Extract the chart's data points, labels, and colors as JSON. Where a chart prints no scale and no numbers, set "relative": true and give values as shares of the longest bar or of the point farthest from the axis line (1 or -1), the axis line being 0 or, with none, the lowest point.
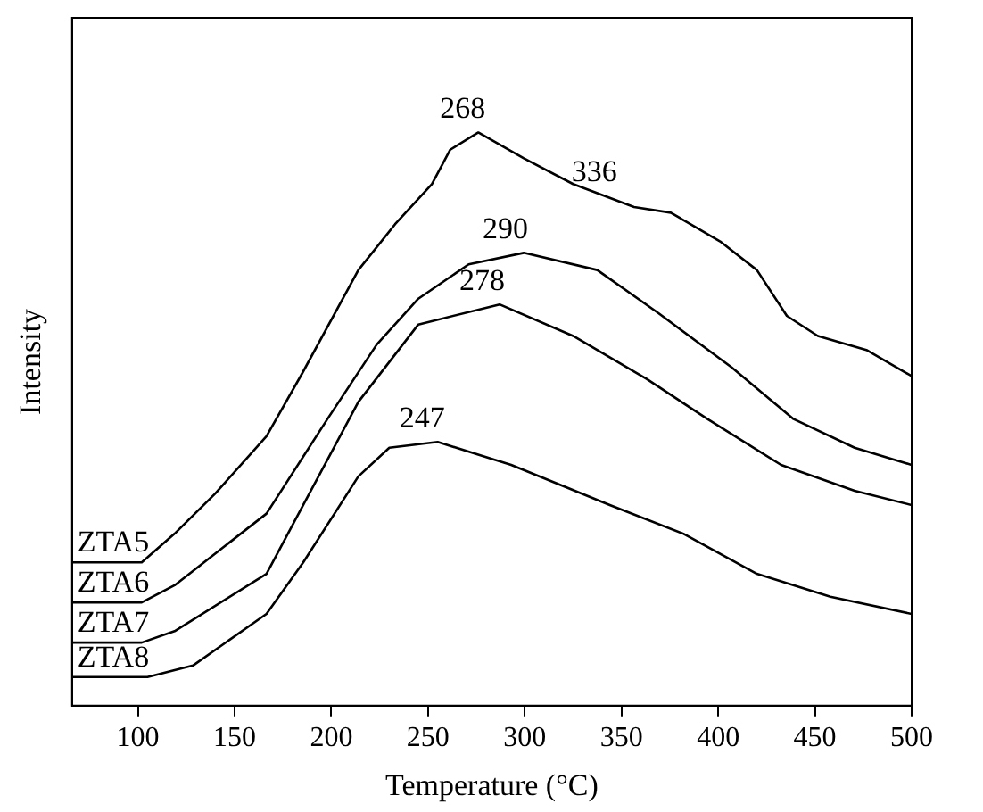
{
  "chart_data": {
    "type": "line",
    "relative": true,
    "xlabel": "Temperature (°C)",
    "ylabel": "Intensity",
    "xlim": [
      66,
      500
    ],
    "xticks": [
      100,
      150,
      200,
      250,
      300,
      350,
      400,
      450,
      500
    ],
    "legend": false,
    "grid": false,
    "marker": "none",
    "line_style": "solid",
    "series": [
      {
        "name": "ZTA5",
        "color": "#000000",
        "x": [
          66,
          102,
          119,
          140,
          166.5,
          185,
          214,
          233,
          252,
          261.5,
          276,
          299.5,
          325,
          356.5,
          375.5,
          401,
          420,
          435.5,
          451.5,
          477,
          500
        ],
        "values": [
          0.25,
          0.25,
          0.3,
          0.37,
          0.47,
          0.58,
          0.76,
          0.84,
          0.91,
          0.97,
          1.0,
          0.955,
          0.91,
          0.87,
          0.86,
          0.81,
          0.76,
          0.68,
          0.645,
          0.62,
          0.575
        ]
      },
      {
        "name": "ZTA6",
        "color": "#000000",
        "x": [
          66,
          102,
          119,
          166.5,
          198,
          223.5,
          245,
          271,
          299.5,
          337.5,
          369,
          407,
          439,
          470.5,
          500
        ],
        "values": [
          0.18,
          0.18,
          0.21,
          0.335,
          0.5,
          0.63,
          0.71,
          0.77,
          0.79,
          0.76,
          0.685,
          0.59,
          0.5,
          0.45,
          0.42
        ]
      },
      {
        "name": "ZTA7",
        "color": "#000000",
        "x": [
          66,
          102,
          119,
          166.5,
          185.5,
          214,
          245,
          287,
          325,
          363,
          394.5,
          432.5,
          470.5,
          500
        ],
        "values": [
          0.11,
          0.11,
          0.13,
          0.23,
          0.35,
          0.53,
          0.665,
          0.7,
          0.645,
          0.57,
          0.5,
          0.42,
          0.375,
          0.35
        ]
      },
      {
        "name": "ZTA8",
        "color": "#000000",
        "x": [
          66,
          105,
          128.5,
          166.5,
          185.5,
          214,
          230,
          255,
          293,
          344,
          382,
          420,
          458,
          500
        ],
        "values": [
          0.05,
          0.05,
          0.07,
          0.16,
          0.25,
          0.4,
          0.45,
          0.46,
          0.42,
          0.35,
          0.3,
          0.23,
          0.19,
          0.16
        ]
      }
    ],
    "annotations": [
      {
        "text": "268",
        "x": 268,
        "y": 1.0
      },
      {
        "text": "336",
        "x": 336,
        "y": 0.89
      },
      {
        "text": "290",
        "x": 290,
        "y": 0.79
      },
      {
        "text": "278",
        "x": 278,
        "y": 0.7
      },
      {
        "text": "247",
        "x": 247,
        "y": 0.46
      }
    ]
  }
}
